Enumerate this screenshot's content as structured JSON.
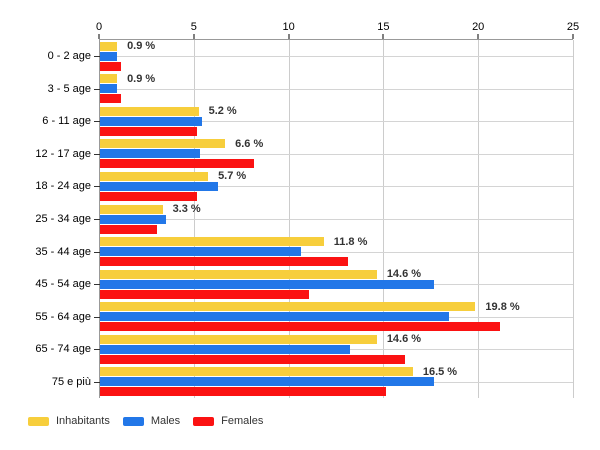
{
  "chart_data": {
    "type": "bar",
    "orientation": "horizontal",
    "title": "",
    "xlabel": "",
    "ylabel": "",
    "xlim": [
      0,
      25
    ],
    "x_ticks": [
      0,
      5,
      10,
      15,
      20,
      25
    ],
    "grid": true,
    "legend_position": "bottom",
    "categories": [
      "0 - 2 age",
      "3 - 5 age",
      "6 - 11 age",
      "12 - 17 age",
      "18 - 24 age",
      "25 - 34 age",
      "35 - 44 age",
      "45 - 54 age",
      "55 - 64 age",
      "65 - 74 age",
      "75 e più"
    ],
    "series": [
      {
        "name": "Inhabitants",
        "color": "#F7CE3C",
        "values": [
          0.9,
          0.9,
          5.2,
          6.6,
          5.7,
          3.3,
          11.8,
          14.6,
          19.8,
          14.6,
          16.5
        ]
      },
      {
        "name": "Males",
        "color": "#2277E8",
        "values": [
          0.9,
          0.9,
          5.4,
          5.3,
          6.2,
          3.5,
          10.6,
          17.6,
          18.4,
          13.2,
          17.6
        ]
      },
      {
        "name": "Females",
        "color": "#FB1212",
        "values": [
          1.1,
          1.1,
          5.1,
          8.1,
          5.1,
          3.0,
          13.1,
          11.0,
          21.1,
          16.1,
          15.1
        ]
      }
    ],
    "bar_labels": [
      "0.9 %",
      "0.9 %",
      "5.2 %",
      "6.6 %",
      "5.7 %",
      "3.3 %",
      "11.8 %",
      "14.6 %",
      "19.8 %",
      "14.6 %",
      "16.5 %"
    ]
  },
  "colors": {
    "grid": "#cccccc",
    "row_grid": "#d4d4d4",
    "axis": "#999999",
    "tick": "#000000",
    "value_label": "#333333"
  }
}
